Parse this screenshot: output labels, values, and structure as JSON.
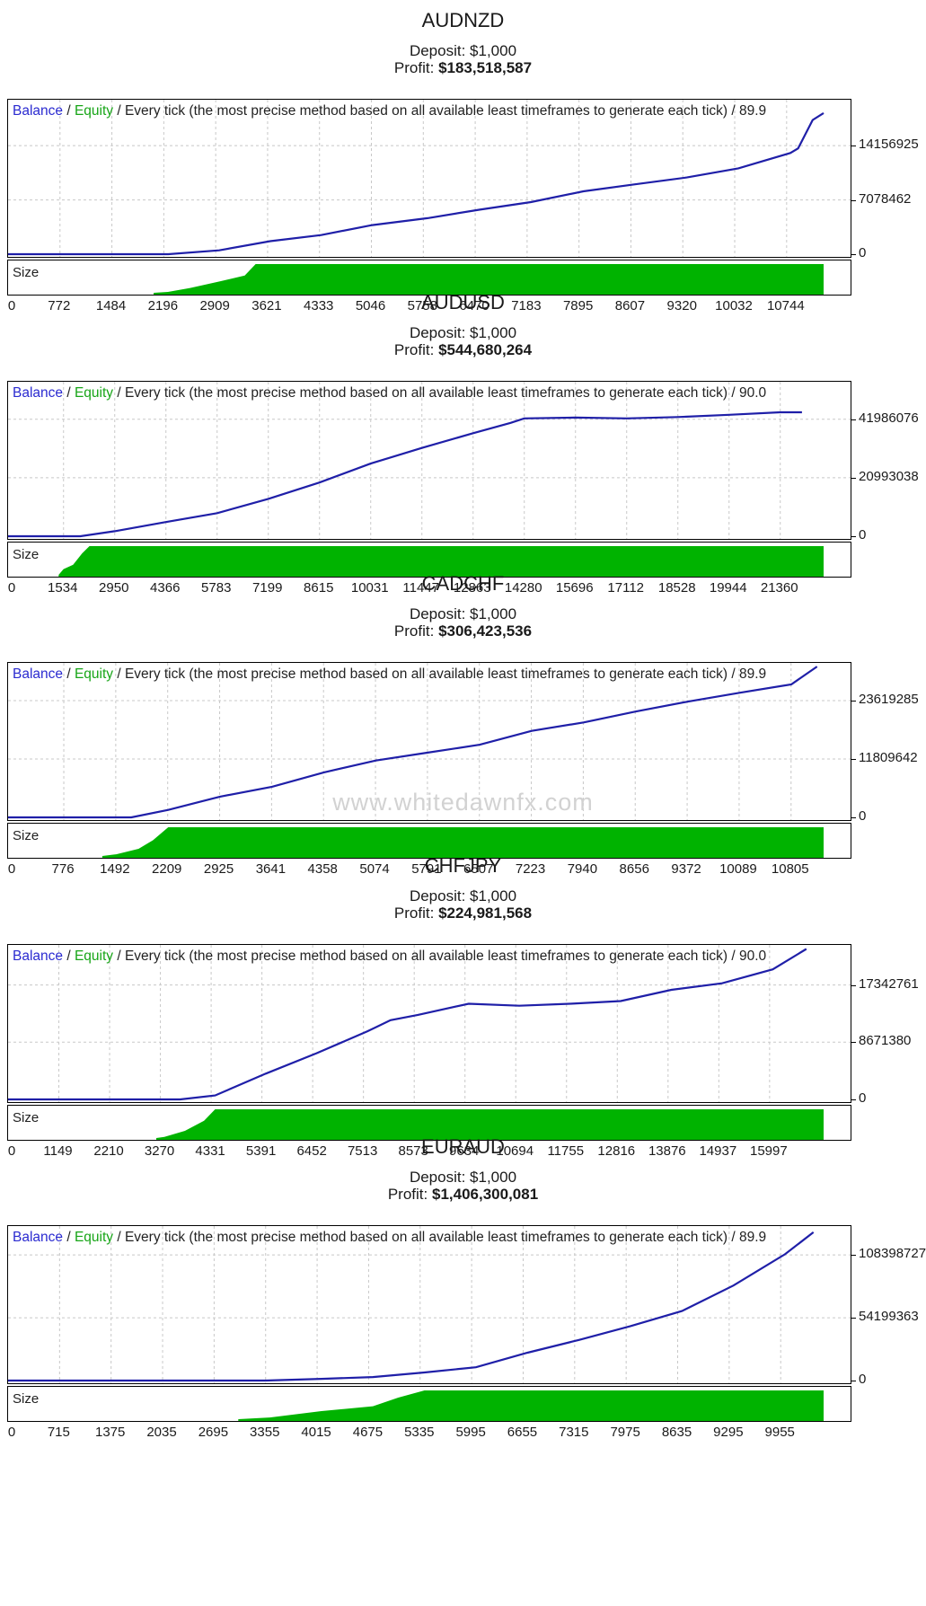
{
  "legend": {
    "balance": "Balance",
    "equity": "Equity",
    "slash": " / ",
    "method": "Every tick (the most precise method based on all available least timeframes to generate each tick)"
  },
  "size_label": "Size",
  "deposit_label": "Deposit:",
  "profit_label": "Profit:",
  "watermark": "www.whitedawnfx.com",
  "colors": {
    "balance": "#1f1fa8",
    "equity": "#17a517",
    "size_fill": "#00b300",
    "grid": "#c8c8c8"
  },
  "chart_data": [
    {
      "type": "line",
      "pair": "AUDNZD",
      "deposit": "$1,000",
      "profit": "$183,518,587",
      "quality": "/ 89.9",
      "y_ticks": [
        "14156925",
        "7078462",
        "0"
      ],
      "y_max": 14156925,
      "ylim": [
        0,
        19800000
      ],
      "x_ticks": [
        "0",
        "772",
        "1484",
        "2196",
        "2909",
        "3621",
        "4333",
        "5046",
        "5758",
        "6470",
        "7183",
        "7895",
        "8607",
        "9320",
        "10032",
        "10744"
      ],
      "x_start": 0,
      "x_step": 712.8,
      "x_max": 11200,
      "series": [
        {
          "values": [
            [
              0,
              0
            ],
            [
              2200,
              0
            ],
            [
              2900,
              500000
            ],
            [
              3600,
              1700000
            ],
            [
              4300,
              2500000
            ],
            [
              5000,
              3800000
            ],
            [
              5760,
              4700000
            ],
            [
              6470,
              5800000
            ],
            [
              7180,
              6800000
            ],
            [
              7900,
              8200000
            ],
            [
              8600,
              9100000
            ],
            [
              9320,
              10000000
            ],
            [
              10030,
              11200000
            ],
            [
              10744,
              13200000
            ],
            [
              10850,
              13800000
            ],
            [
              11050,
              17500000
            ],
            [
              11200,
              18400000
            ]
          ]
        }
      ],
      "size_area": [
        [
          2000,
          0
        ],
        [
          2196,
          0.03
        ],
        [
          2500,
          0.17
        ],
        [
          2909,
          0.4
        ],
        [
          3250,
          0.6
        ],
        [
          3400,
          1
        ],
        [
          11200,
          1
        ]
      ]
    },
    {
      "type": "line",
      "pair": "AUDUSD",
      "deposit": "$1,000",
      "profit": "$544,680,264",
      "quality": "/ 90.0",
      "y_ticks": [
        "41986076",
        "20993038",
        "0"
      ],
      "y_max": 41986076,
      "ylim": [
        0,
        54500000
      ],
      "x_ticks": [
        "0",
        "1534",
        "2950",
        "4366",
        "5783",
        "7199",
        "8615",
        "10031",
        "11447",
        "12863",
        "14280",
        "15696",
        "17112",
        "18528",
        "19944",
        "21360"
      ],
      "x_start": 118,
      "x_step": 1416.2,
      "x_max": 22560,
      "series": [
        {
          "values": [
            [
              0,
              0
            ],
            [
              2000,
              0
            ],
            [
              2950,
              1800000
            ],
            [
              4366,
              5100000
            ],
            [
              5783,
              8300000
            ],
            [
              7199,
              13400000
            ],
            [
              8615,
              19300000
            ],
            [
              10031,
              26100000
            ],
            [
              11447,
              31700000
            ],
            [
              12863,
              37000000
            ],
            [
              13900,
              40700000
            ],
            [
              14280,
              42300000
            ],
            [
              15696,
              42600000
            ],
            [
              17112,
              42300000
            ],
            [
              18528,
              42800000
            ],
            [
              19944,
              43600000
            ],
            [
              21360,
              44500000
            ],
            [
              21960,
              44500000
            ]
          ]
        }
      ],
      "size_area": [
        [
          1400,
          0
        ],
        [
          1534,
          0.2
        ],
        [
          1800,
          0.35
        ],
        [
          2050,
          0.75
        ],
        [
          2250,
          1
        ],
        [
          22560,
          1
        ]
      ]
    },
    {
      "type": "line",
      "pair": "CADCHF",
      "deposit": "$1,000",
      "profit": "$306,423,536",
      "quality": "/ 89.9",
      "y_ticks": [
        "23619285",
        "11809642",
        "0"
      ],
      "y_max": 23619285,
      "ylim": [
        0,
        30700000
      ],
      "x_ticks": [
        "0",
        "776",
        "1492",
        "2209",
        "2925",
        "3641",
        "4358",
        "5074",
        "5791",
        "6507",
        "7223",
        "7940",
        "8656",
        "9372",
        "10089",
        "10805"
      ],
      "x_start": 52,
      "x_step": 716.6,
      "x_max": 11250,
      "series": [
        {
          "values": [
            [
              0,
              0
            ],
            [
              1700,
              0
            ],
            [
              2209,
              1500000
            ],
            [
              2925,
              4200000
            ],
            [
              3641,
              6200000
            ],
            [
              4358,
              9100000
            ],
            [
              5074,
              11500000
            ],
            [
              5791,
              13100000
            ],
            [
              6507,
              14700000
            ],
            [
              7223,
              17500000
            ],
            [
              7940,
              19200000
            ],
            [
              8656,
              21400000
            ],
            [
              9372,
              23400000
            ],
            [
              10089,
              25200000
            ],
            [
              10805,
              26900000
            ],
            [
              11160,
              30500000
            ]
          ]
        }
      ],
      "size_area": [
        [
          1300,
          0
        ],
        [
          1492,
          0.06
        ],
        [
          1800,
          0.25
        ],
        [
          2000,
          0.55
        ],
        [
          2209,
          1
        ],
        [
          11250,
          1
        ]
      ]
    },
    {
      "type": "line",
      "pair": "CHFJPY",
      "deposit": "$1,000",
      "profit": "$224,981,568",
      "quality": "/ 90.0",
      "y_ticks": [
        "17342761",
        "8671380",
        "0"
      ],
      "y_max": 17342761,
      "ylim": [
        0,
        23000000
      ],
      "x_ticks": [
        "0",
        "1149",
        "2210",
        "3270",
        "4331",
        "5391",
        "6452",
        "7513",
        "8573",
        "9634",
        "10694",
        "11755",
        "12816",
        "13876",
        "14937",
        "15997"
      ],
      "x_start": 0,
      "x_step": 1062,
      "x_max": 17060,
      "series": [
        {
          "values": [
            [
              0,
              0
            ],
            [
              3600,
              0
            ],
            [
              4331,
              600000
            ],
            [
              5391,
              3900000
            ],
            [
              6452,
              7000000
            ],
            [
              7513,
              10300000
            ],
            [
              8000,
              12000000
            ],
            [
              8573,
              12800000
            ],
            [
              9634,
              14500000
            ],
            [
              10694,
              14200000
            ],
            [
              11755,
              14500000
            ],
            [
              12816,
              14900000
            ],
            [
              13876,
              16600000
            ],
            [
              14937,
              17600000
            ],
            [
              15997,
              19700000
            ],
            [
              16700,
              22800000
            ]
          ]
        }
      ],
      "size_area": [
        [
          3100,
          0
        ],
        [
          3270,
          0.04
        ],
        [
          3700,
          0.25
        ],
        [
          4100,
          0.6
        ],
        [
          4331,
          1
        ],
        [
          17060,
          1
        ]
      ]
    },
    {
      "type": "line",
      "pair": "EURAUD",
      "deposit": "$1,000",
      "profit": "$1,406,300,081",
      "quality": "/ 89.9",
      "y_ticks": [
        "108398727",
        "54199363",
        "0"
      ],
      "y_max": 108398727,
      "ylim": [
        0,
        131000000
      ],
      "x_ticks": [
        "0",
        "715",
        "1375",
        "2035",
        "2695",
        "3355",
        "4015",
        "4675",
        "5335",
        "5995",
        "6655",
        "7315",
        "7975",
        "8635",
        "9295",
        "9955"
      ],
      "x_start": 0,
      "x_step": 660,
      "x_max": 10450,
      "series": [
        {
          "values": [
            [
              0,
              0
            ],
            [
              3300,
              0
            ],
            [
              4015,
              1500000
            ],
            [
              4675,
              3000000
            ],
            [
              5335,
              7000000
            ],
            [
              5995,
              11500000
            ],
            [
              6655,
              24000000
            ],
            [
              7315,
              35000000
            ],
            [
              7975,
              47000000
            ],
            [
              8635,
              60000000
            ],
            [
              9295,
              82000000
            ],
            [
              9955,
              109000000
            ],
            [
              10320,
              128000000
            ]
          ]
        }
      ],
      "size_area": [
        [
          2950,
          0
        ],
        [
          3355,
          0.06
        ],
        [
          4015,
          0.28
        ],
        [
          4675,
          0.45
        ],
        [
          5000,
          0.75
        ],
        [
          5335,
          1
        ],
        [
          10450,
          1
        ]
      ]
    }
  ]
}
